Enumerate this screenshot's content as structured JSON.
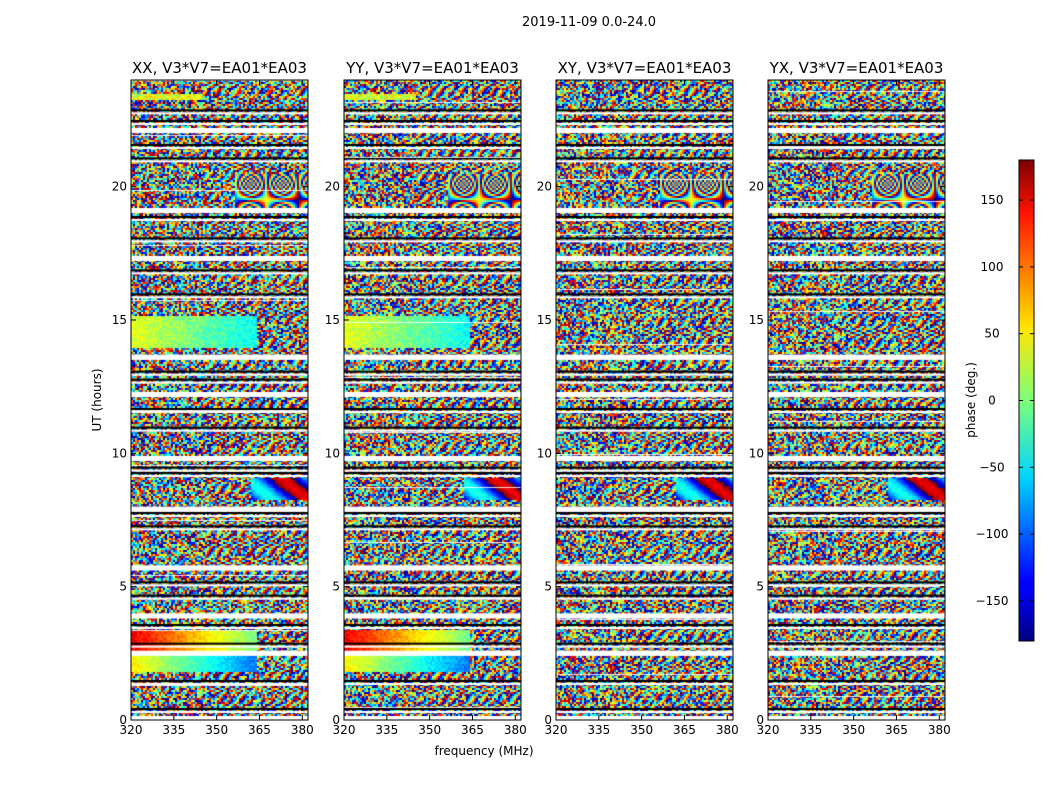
{
  "chart_data": {
    "type": "heatmap",
    "suptitle": "2019-11-09 0.0-24.0",
    "xlabel": "frequency (MHz)",
    "ylabel": "UT (hours)",
    "xlim": [
      320,
      382
    ],
    "ylim": [
      0,
      24
    ],
    "xticks": [
      "320",
      "335",
      "350",
      "365",
      "380"
    ],
    "xtick_values": [
      320,
      335,
      350,
      365,
      380
    ],
    "yticks": [
      "0",
      "5",
      "10",
      "15",
      "20"
    ],
    "ytick_values": [
      0,
      5,
      10,
      15,
      20
    ],
    "panels": [
      {
        "title": "XX, V3*V7=EA01*EA03",
        "pol": "XX"
      },
      {
        "title": "YY, V3*V7=EA01*EA03",
        "pol": "YY"
      },
      {
        "title": "XY, V3*V7=EA01*EA03",
        "pol": "XY"
      },
      {
        "title": "YX, V3*V7=EA01*EA03",
        "pol": "YX"
      }
    ],
    "colorbar": {
      "label": "phase (deg.)",
      "range": [
        -180,
        180
      ],
      "ticks": [
        "150",
        "100",
        "50",
        "0",
        "−50",
        "−100",
        "−150"
      ],
      "tick_values": [
        150,
        100,
        50,
        0,
        -50,
        -100,
        -150
      ],
      "colormap": "jet"
    },
    "flagged_ut_hours": [
      0.15,
      0.45,
      1.5,
      2.6,
      2.9,
      3.6,
      4.0,
      4.7,
      5.2,
      5.8,
      7.3,
      7.8,
      8.0,
      9.3,
      9.5,
      9.9,
      11.0,
      11.7,
      12.3,
      12.8,
      13.1,
      13.7,
      16.0,
      16.9,
      17.4,
      18.1,
      18.9,
      19.2,
      21.1,
      21.6,
      22.2,
      22.5,
      22.9
    ]
  }
}
